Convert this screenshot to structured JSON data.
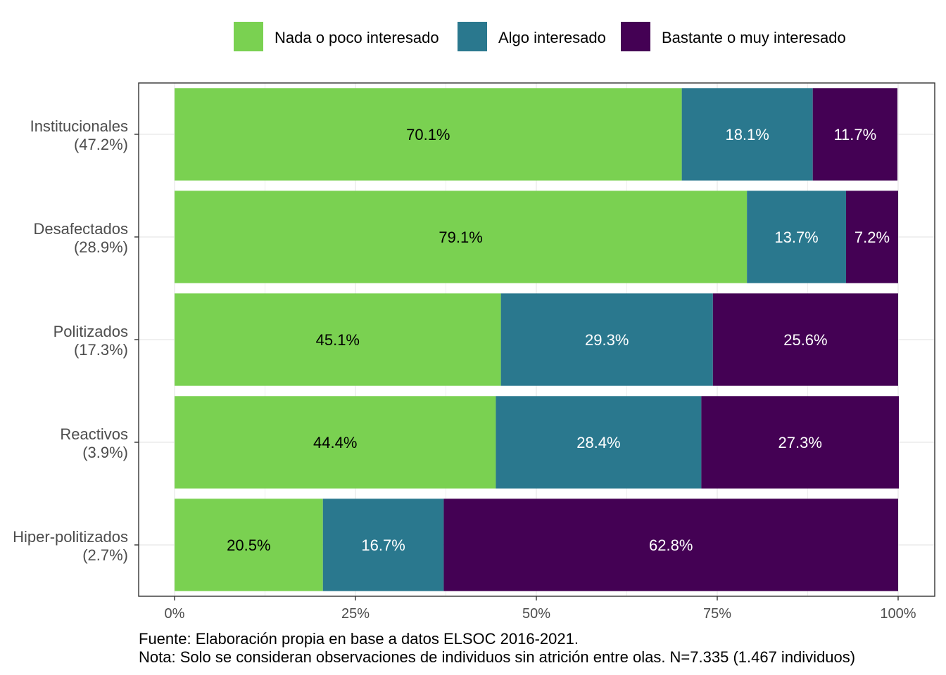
{
  "chart_data": {
    "type": "bar",
    "orientation": "horizontal",
    "stacked": true,
    "categories": [
      {
        "name": "Institucionales",
        "share": "(47.2%)"
      },
      {
        "name": "Desafectados",
        "share": "(28.9%)"
      },
      {
        "name": "Politizados",
        "share": "(17.3%)"
      },
      {
        "name": "Reactivos",
        "share": "(3.9%)"
      },
      {
        "name": "Hiper-politizados",
        "share": "(2.7%)"
      }
    ],
    "series": [
      {
        "name": "Nada o poco interesado",
        "color": "#7AD151",
        "label_color": "#000000",
        "values": [
          70.1,
          79.1,
          45.1,
          44.4,
          20.5
        ]
      },
      {
        "name": "Algo interesado",
        "color": "#2A788E",
        "label_color": "#ffffff",
        "values": [
          18.1,
          13.7,
          29.3,
          28.4,
          16.7
        ]
      },
      {
        "name": "Bastante o muy interesado",
        "color": "#440154",
        "label_color": "#ffffff",
        "values": [
          11.7,
          7.2,
          25.6,
          27.3,
          62.8
        ]
      }
    ],
    "x_ticks": [
      "0%",
      "25%",
      "50%",
      "75%",
      "100%"
    ],
    "xlim": [
      0,
      100
    ],
    "grid": true,
    "legend_position": "top",
    "title": "",
    "xlabel": "",
    "ylabel": ""
  },
  "caption": {
    "source": "Fuente: Elaboración propia en base a datos ELSOC 2016-2021.",
    "note": "Nota: Solo se consideran observaciones de individuos sin atrición entre olas. N=7.335 (1.467 individuos)"
  }
}
